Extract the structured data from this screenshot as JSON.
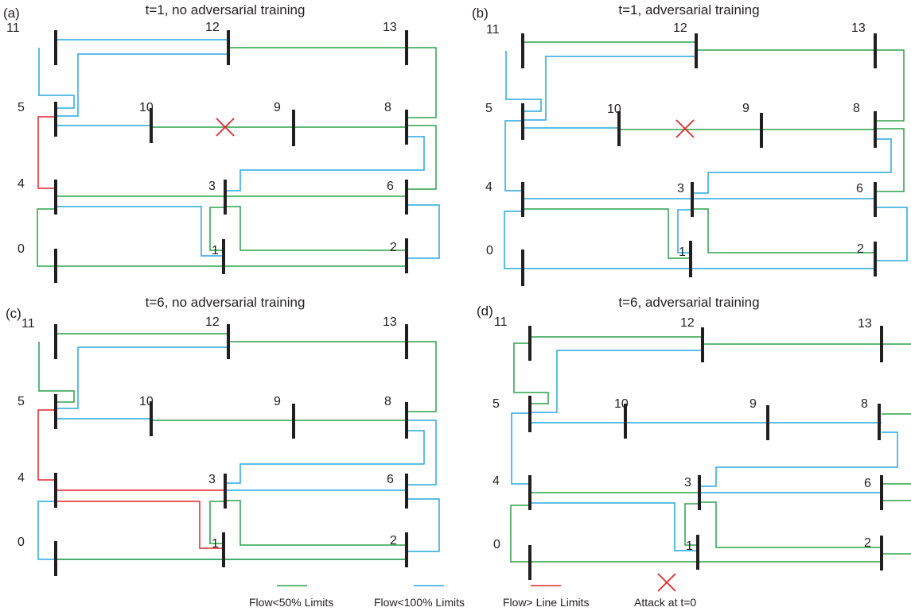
{
  "panels": [
    {
      "label": "(a)",
      "title": "t=1, no adversarial training"
    },
    {
      "label": "(b)",
      "title": "t=1, adversarial training"
    },
    {
      "label": "(c)",
      "title": "t=6, no adversarial training"
    },
    {
      "label": "(d)",
      "title": "t=6, adversarial training"
    }
  ],
  "bus_labels": [
    "0",
    "1",
    "2",
    "3",
    "4",
    "5",
    "6",
    "8",
    "9",
    "10",
    "11",
    "12",
    "13"
  ],
  "legend": {
    "items": [
      {
        "label": "Flow<50% Limits",
        "color": "#2ca24a"
      },
      {
        "label": "Flow<100% Limits",
        "color": "#27a9e1"
      },
      {
        "label": "Flow> Line Limits",
        "color": "#e1262d"
      },
      {
        "label": "Attack at t=0",
        "color": "#e1262d"
      }
    ]
  },
  "colors": {
    "green": "#2ca24a",
    "blue": "#27a9e1",
    "red": "#e1262d",
    "bus": "#231f20"
  }
}
